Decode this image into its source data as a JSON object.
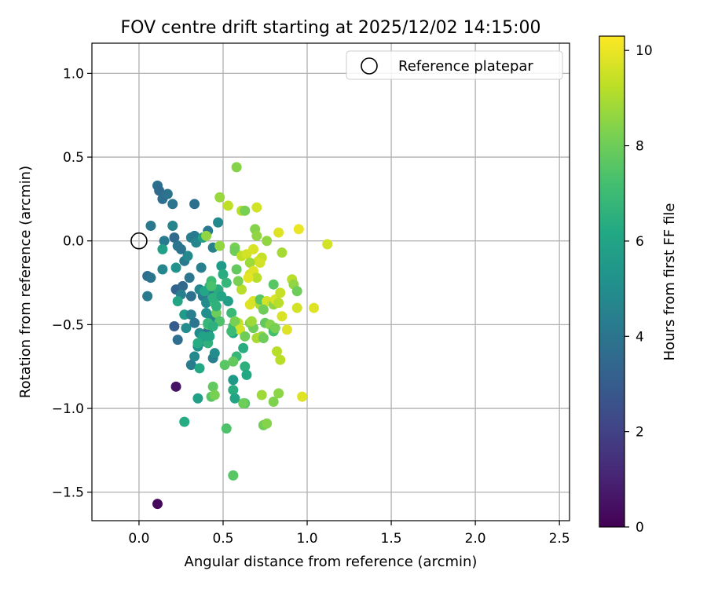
{
  "chart_data": {
    "type": "scatter",
    "title": "FOV centre drift starting at 2025/12/02 14:15:00",
    "xlabel": "Angular distance from reference (arcmin)",
    "ylabel": "Rotation from reference (arcmin)",
    "xlim": [
      -0.28,
      2.56
    ],
    "ylim": [
      -1.67,
      1.18
    ],
    "x_ticks": [
      0.0,
      0.5,
      1.0,
      1.5,
      2.0,
      2.5
    ],
    "x_tick_labels": [
      "0.0",
      "0.5",
      "1.0",
      "1.5",
      "2.0",
      "2.5"
    ],
    "y_ticks": [
      1.0,
      0.5,
      0.0,
      -0.5,
      -1.0,
      -1.5
    ],
    "y_tick_labels": [
      "1.0",
      "0.5",
      "0.0",
      "−0.5",
      "−1.0",
      "−1.5"
    ],
    "grid": true,
    "legend": {
      "position": "top-right",
      "entries": [
        "Reference platepar"
      ]
    },
    "reference_point": {
      "x": 0.0,
      "y": 0.0,
      "label": "Reference platepar"
    },
    "colorbar": {
      "label": "Hours from first FF file",
      "min": 0,
      "max": 10.3,
      "ticks": [
        0,
        2,
        4,
        6,
        8,
        10
      ],
      "tick_labels": [
        "0",
        "2",
        "4",
        "6",
        "8",
        "10"
      ],
      "colormap": "viridis"
    },
    "points": [
      [
        0.11,
        -1.57,
        0.2
      ],
      [
        0.22,
        -0.87,
        0.5
      ],
      [
        0.11,
        0.33,
        3.8
      ],
      [
        0.12,
        0.3,
        3.6
      ],
      [
        0.14,
        0.25,
        3.7
      ],
      [
        0.17,
        0.28,
        3.9
      ],
      [
        0.2,
        0.22,
        4.0
      ],
      [
        0.33,
        0.22,
        3.8
      ],
      [
        0.07,
        0.09,
        4.1
      ],
      [
        0.2,
        0.09,
        4.6
      ],
      [
        0.15,
        0.0,
        4.2
      ],
      [
        0.21,
        0.02,
        3.6
      ],
      [
        0.31,
        0.02,
        4.4
      ],
      [
        0.33,
        0.03,
        4.2
      ],
      [
        0.23,
        -0.03,
        4.0
      ],
      [
        0.25,
        -0.05,
        3.9
      ],
      [
        0.14,
        -0.05,
        5.8
      ],
      [
        0.34,
        -0.01,
        4.7
      ],
      [
        0.38,
        0.02,
        5.8
      ],
      [
        0.41,
        0.06,
        4.2
      ],
      [
        0.47,
        0.11,
        4.8
      ],
      [
        0.05,
        -0.21,
        3.7
      ],
      [
        0.07,
        -0.22,
        3.9
      ],
      [
        0.05,
        -0.33,
        4.2
      ],
      [
        0.14,
        -0.17,
        4.7
      ],
      [
        0.22,
        -0.16,
        5.2
      ],
      [
        0.27,
        -0.12,
        4.2
      ],
      [
        0.29,
        -0.09,
        4.8
      ],
      [
        0.3,
        -0.22,
        4.0
      ],
      [
        0.22,
        -0.29,
        3.3
      ],
      [
        0.26,
        -0.27,
        3.5
      ],
      [
        0.25,
        -0.32,
        4.4
      ],
      [
        0.23,
        -0.36,
        6.0
      ],
      [
        0.31,
        -0.33,
        3.8
      ],
      [
        0.37,
        -0.16,
        4.4
      ],
      [
        0.36,
        -0.29,
        4.7
      ],
      [
        0.38,
        -0.33,
        4.3
      ],
      [
        0.4,
        -0.37,
        4.9
      ],
      [
        0.44,
        -0.32,
        4.3
      ],
      [
        0.44,
        -0.04,
        4.5
      ],
      [
        0.27,
        -0.44,
        5.6
      ],
      [
        0.31,
        -0.44,
        4.4
      ],
      [
        0.33,
        -0.49,
        4.0
      ],
      [
        0.28,
        -0.52,
        5.0
      ],
      [
        0.21,
        -0.51,
        3.0
      ],
      [
        0.23,
        -0.59,
        3.7
      ],
      [
        0.36,
        -0.55,
        4.9
      ],
      [
        0.39,
        -0.6,
        4.5
      ],
      [
        0.41,
        -0.54,
        3.8
      ],
      [
        0.43,
        -0.46,
        4.6
      ],
      [
        0.35,
        -0.63,
        5.2
      ],
      [
        0.33,
        -0.69,
        4.8
      ],
      [
        0.31,
        -0.74,
        4.3
      ],
      [
        0.44,
        -0.7,
        4.4
      ],
      [
        0.45,
        -0.67,
        5.0
      ],
      [
        0.36,
        -0.76,
        6.2
      ],
      [
        0.41,
        -0.61,
        6.6
      ],
      [
        0.35,
        -0.94,
        5.8
      ],
      [
        0.27,
        -1.08,
        6.3
      ],
      [
        0.49,
        -0.15,
        5.6
      ],
      [
        0.5,
        -0.2,
        6.4
      ],
      [
        0.52,
        -0.25,
        6.8
      ],
      [
        0.47,
        -0.29,
        6.4
      ],
      [
        0.53,
        -0.36,
        5.7
      ],
      [
        0.43,
        -0.24,
        7.0
      ],
      [
        0.42,
        -0.27,
        6.7
      ],
      [
        0.45,
        -0.37,
        7.1
      ],
      [
        0.46,
        -0.43,
        8.0
      ],
      [
        0.48,
        -0.48,
        7.4
      ],
      [
        0.41,
        -0.5,
        7.2
      ],
      [
        0.55,
        -0.43,
        6.9
      ],
      [
        0.56,
        -0.51,
        7.1
      ],
      [
        0.56,
        -0.55,
        6.2
      ],
      [
        0.6,
        -0.53,
        6.6
      ],
      [
        0.62,
        -0.64,
        6.4
      ],
      [
        0.58,
        -0.69,
        6.8
      ],
      [
        0.63,
        -0.75,
        6.5
      ],
      [
        0.64,
        -0.8,
        6.2
      ],
      [
        0.56,
        -0.83,
        5.5
      ],
      [
        0.56,
        -0.89,
        6.4
      ],
      [
        0.57,
        -0.94,
        6.0
      ],
      [
        0.63,
        -0.97,
        7.5
      ],
      [
        0.62,
        -0.97,
        8.0
      ],
      [
        0.44,
        -0.87,
        7.8
      ],
      [
        0.43,
        -0.93,
        7.6
      ],
      [
        0.45,
        -0.92,
        8.2
      ],
      [
        0.52,
        -1.12,
        7.4
      ],
      [
        0.56,
        -1.4,
        7.6
      ],
      [
        0.51,
        -0.74,
        7.6
      ],
      [
        0.56,
        -0.72,
        7.8
      ],
      [
        0.48,
        0.26,
        8.7
      ],
      [
        0.53,
        0.21,
        9.3
      ],
      [
        0.58,
        0.44,
        8.4
      ],
      [
        0.61,
        0.18,
        9.2
      ],
      [
        0.63,
        0.18,
        8.2
      ],
      [
        0.7,
        0.2,
        9.6
      ],
      [
        0.4,
        0.03,
        8.6
      ],
      [
        0.48,
        -0.03,
        8.6
      ],
      [
        0.57,
        -0.04,
        8.2
      ],
      [
        0.57,
        -0.06,
        8.0
      ],
      [
        0.61,
        -0.09,
        9.3
      ],
      [
        0.64,
        -0.08,
        9.6
      ],
      [
        0.68,
        -0.05,
        9.7
      ],
      [
        0.69,
        0.07,
        8.4
      ],
      [
        0.7,
        0.03,
        8.6
      ],
      [
        0.71,
        -0.12,
        9.6
      ],
      [
        0.73,
        -0.1,
        9.4
      ],
      [
        0.76,
        0.0,
        8.6
      ],
      [
        0.83,
        0.05,
        9.8
      ],
      [
        0.85,
        -0.07,
        8.9
      ],
      [
        0.66,
        -0.13,
        8.8
      ],
      [
        0.72,
        -0.13,
        9.6
      ],
      [
        0.66,
        -0.2,
        9.5
      ],
      [
        0.68,
        -0.18,
        9.8
      ],
      [
        0.7,
        -0.22,
        9.2
      ],
      [
        0.65,
        -0.22,
        9.9
      ],
      [
        0.61,
        -0.29,
        9.2
      ],
      [
        0.59,
        -0.24,
        8.2
      ],
      [
        0.58,
        -0.17,
        7.8
      ],
      [
        0.66,
        -0.38,
        9.8
      ],
      [
        0.68,
        -0.36,
        9.7
      ],
      [
        0.72,
        -0.38,
        9.0
      ],
      [
        0.72,
        -0.35,
        7.6
      ],
      [
        0.76,
        -0.36,
        9.6
      ],
      [
        0.74,
        -0.41,
        8.0
      ],
      [
        0.8,
        -0.38,
        8.6
      ],
      [
        0.81,
        -0.35,
        9.7
      ],
      [
        0.83,
        -0.37,
        9.2
      ],
      [
        0.84,
        -0.31,
        9.4
      ],
      [
        0.8,
        -0.26,
        7.6
      ],
      [
        0.91,
        -0.23,
        9.2
      ],
      [
        0.92,
        -0.26,
        8.6
      ],
      [
        0.94,
        -0.3,
        8.0
      ],
      [
        0.95,
        0.07,
        10.0
      ],
      [
        0.94,
        -0.4,
        9.6
      ],
      [
        1.04,
        -0.4,
        9.8
      ],
      [
        1.12,
        -0.02,
        9.6
      ],
      [
        0.66,
        -0.49,
        8.4
      ],
      [
        0.68,
        -0.52,
        8.0
      ],
      [
        0.73,
        -0.57,
        8.6
      ],
      [
        0.7,
        -0.58,
        9.0
      ],
      [
        0.74,
        -0.58,
        8.0
      ],
      [
        0.75,
        -0.49,
        7.8
      ],
      [
        0.78,
        -0.5,
        8.4
      ],
      [
        0.8,
        -0.54,
        7.2
      ],
      [
        0.81,
        -0.52,
        8.2
      ],
      [
        0.85,
        -0.45,
        9.7
      ],
      [
        0.88,
        -0.53,
        9.8
      ],
      [
        0.82,
        -0.66,
        9.2
      ],
      [
        0.84,
        -0.71,
        9.2
      ],
      [
        0.8,
        -0.96,
        8.3
      ],
      [
        0.83,
        -0.91,
        8.5
      ],
      [
        0.73,
        -0.92,
        8.8
      ],
      [
        0.74,
        -1.1,
        8.0
      ],
      [
        0.76,
        -1.09,
        8.4
      ],
      [
        0.97,
        -0.93,
        9.8
      ],
      [
        0.59,
        -0.49,
        9.4
      ],
      [
        0.57,
        -0.48,
        8.2
      ],
      [
        0.6,
        -0.53,
        9.6
      ],
      [
        0.63,
        -0.57,
        8.0
      ],
      [
        0.67,
        -0.48,
        8.8
      ],
      [
        0.55,
        -0.54,
        7.0
      ],
      [
        0.39,
        -0.3,
        6.1
      ],
      [
        0.43,
        -0.27,
        7.3
      ],
      [
        0.44,
        -0.34,
        6.5
      ],
      [
        0.49,
        -0.33,
        6.0
      ],
      [
        0.46,
        -0.39,
        6.6
      ],
      [
        0.4,
        -0.43,
        5.1
      ],
      [
        0.41,
        -0.49,
        6.8
      ],
      [
        0.44,
        -0.51,
        6.5
      ],
      [
        0.42,
        -0.57,
        6.0
      ],
      [
        0.38,
        -0.57,
        5.9
      ],
      [
        0.35,
        -0.61,
        6.3
      ]
    ]
  }
}
